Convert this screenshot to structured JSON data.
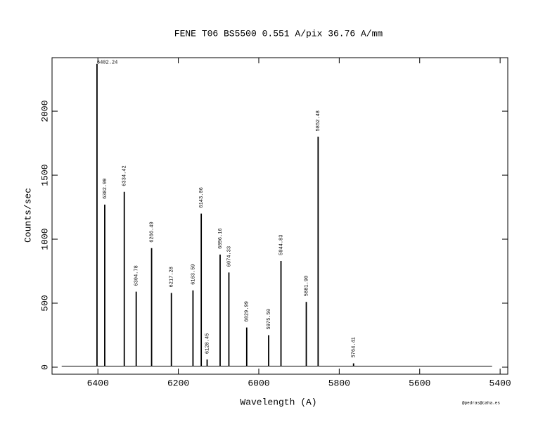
{
  "chart_data": {
    "type": "spectrum",
    "title": "FENE  T06  BS5500  0.551 A/pix  36.76 A/mm",
    "x_label": "Wavelength (A)",
    "y_label": "Counts/sec",
    "credit": "@pedras@caha.es",
    "color": "#000000",
    "x": [
      6402.24,
      6382.99,
      6334.42,
      6304.78,
      6266.49,
      6217.28,
      6163.59,
      6143.06,
      6128.45,
      6096.16,
      6074.33,
      6029.99,
      5975.5,
      5944.83,
      5881.9,
      5852.48,
      5764.41
    ],
    "line_labels": [
      "6402.24",
      "6382.99",
      "6334.42",
      "6304.78",
      "6266.49",
      "6217.28",
      "6163.59",
      "6143.06",
      "6128.45",
      "6096.16",
      "6074.33",
      "6029.99",
      "5975.50",
      "5944.83",
      "5881.90",
      "5852.48",
      "5764.41"
    ],
    "values": [
      2370,
      1270,
      1370,
      590,
      930,
      580,
      600,
      1200,
      60,
      880,
      740,
      310,
      250,
      830,
      510,
      1800,
      30
    ],
    "continuum": {
      "x": [
        6490,
        5420
      ],
      "values": [
        8,
        8
      ]
    },
    "xlim": [
      6514,
      5381
    ],
    "xticks": [
      6400,
      6200,
      6000,
      5800,
      5600,
      5400
    ],
    "ylim": [
      -55,
      2418
    ],
    "yticks": [
      0,
      500,
      1000,
      1500,
      2000
    ]
  }
}
